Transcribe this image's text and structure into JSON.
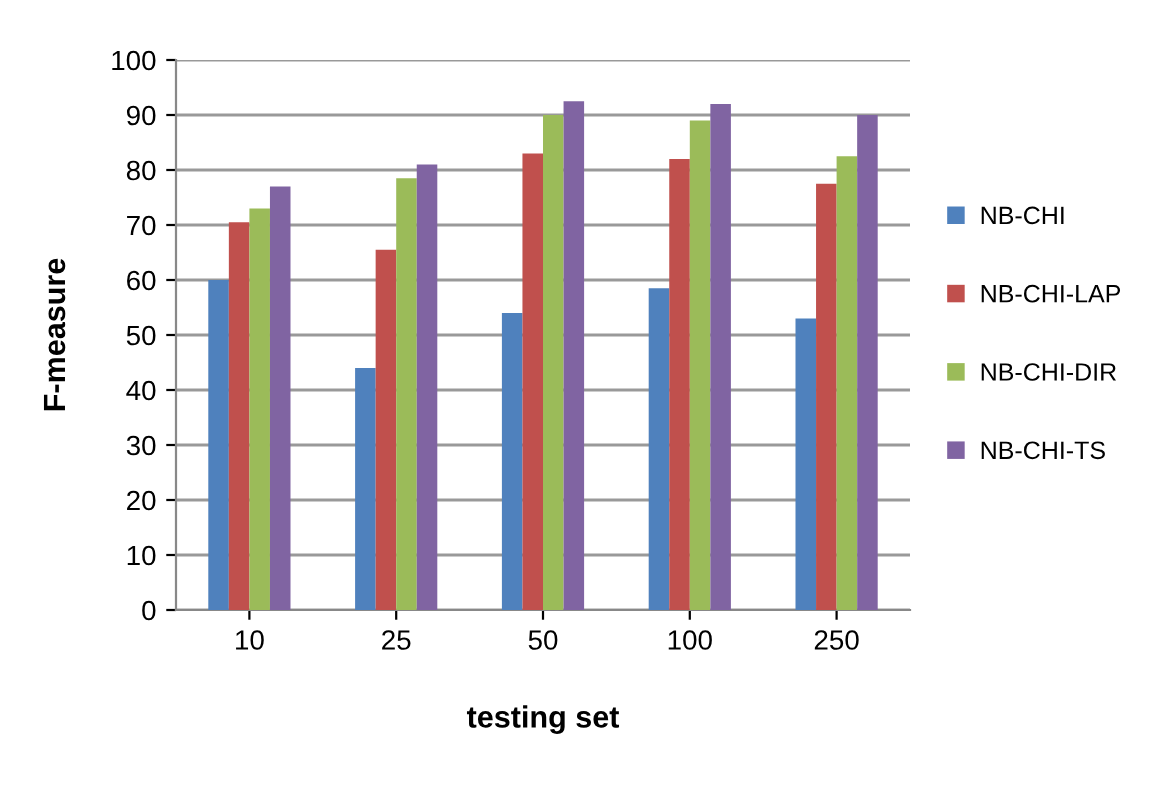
{
  "chart_data": {
    "type": "bar",
    "xlabel": "testing set",
    "ylabel": "F-measure",
    "categories": [
      "10",
      "25",
      "50",
      "100",
      "250"
    ],
    "series": [
      {
        "name": "NB-CHI",
        "color": "#4f81bd",
        "values": [
          60,
          44,
          54,
          58.5,
          53
        ]
      },
      {
        "name": "NB-CHI-LAP",
        "color": "#c0504d",
        "values": [
          70.5,
          65.5,
          83,
          82,
          77.5
        ]
      },
      {
        "name": "NB-CHI-DIR",
        "color": "#9bbb59",
        "values": [
          73,
          78.5,
          90,
          89,
          82.5
        ]
      },
      {
        "name": "NB-CHI-TS",
        "color": "#8064a2",
        "values": [
          77,
          81,
          92.5,
          92,
          90
        ]
      }
    ],
    "ylim": [
      0,
      100
    ],
    "yticks": [
      0,
      10,
      20,
      30,
      40,
      50,
      60,
      70,
      80,
      90,
      100
    ],
    "grid": "y",
    "legend": "right"
  }
}
